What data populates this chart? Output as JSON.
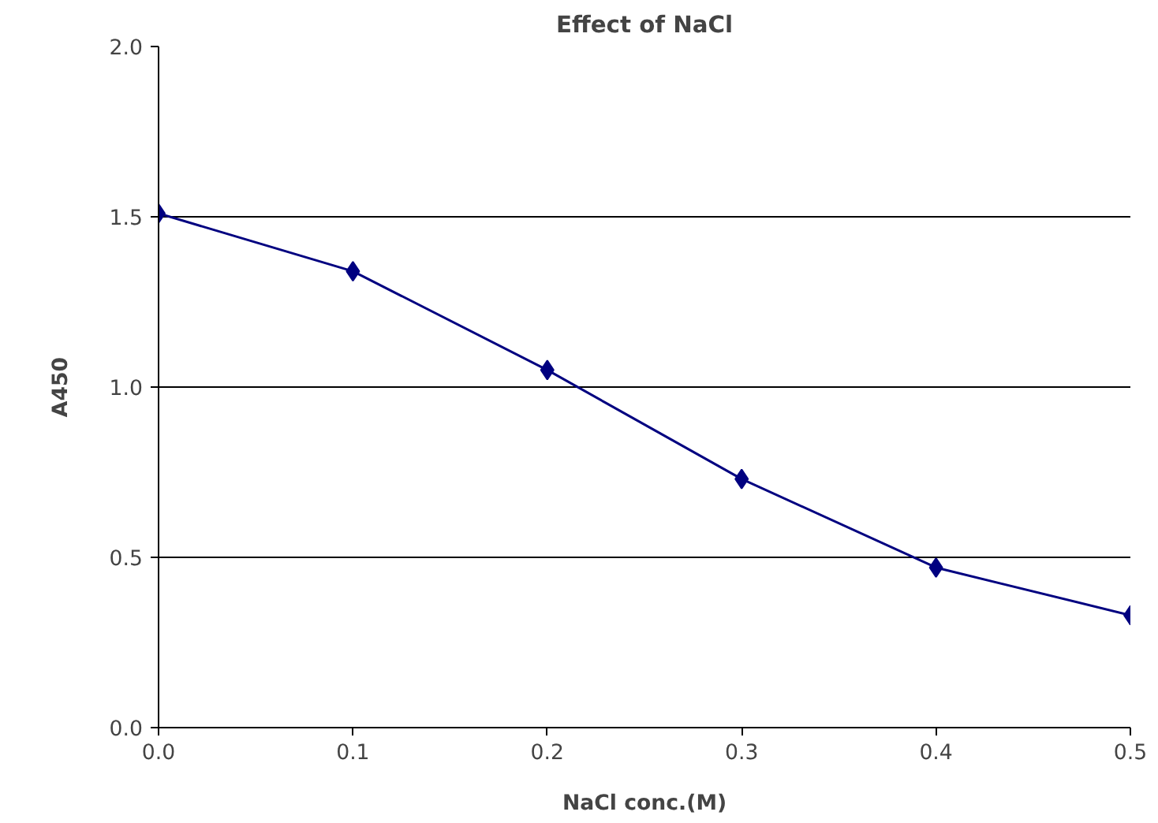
{
  "chart_data": {
    "type": "line",
    "title": "Effect of NaCl",
    "xlabel": "NaCl conc.(M)",
    "ylabel": "A450",
    "x": [
      0.0,
      0.1,
      0.2,
      0.3,
      0.4,
      0.5
    ],
    "series": [
      {
        "color": "#000080",
        "values": [
          1.51,
          1.34,
          1.05,
          0.73,
          0.47,
          0.33
        ]
      }
    ],
    "xlim": [
      0.0,
      0.5
    ],
    "ylim": [
      0.0,
      2.0
    ],
    "xticks": [
      {
        "value": 0.0,
        "label": "0.0"
      },
      {
        "value": 0.1,
        "label": "0.1"
      },
      {
        "value": 0.2,
        "label": "0.2"
      },
      {
        "value": 0.3,
        "label": "0.3"
      },
      {
        "value": 0.4,
        "label": "0.4"
      },
      {
        "value": 0.5,
        "label": "0.5"
      }
    ],
    "yticks": [
      {
        "value": 0.0,
        "label": "0.0"
      },
      {
        "value": 0.5,
        "label": "0.5"
      },
      {
        "value": 1.0,
        "label": "1.0"
      },
      {
        "value": 1.5,
        "label": "1.5"
      },
      {
        "value": 2.0,
        "label": "2.0"
      }
    ],
    "grid": "y",
    "marker": "diamond",
    "line_style": "solid"
  }
}
